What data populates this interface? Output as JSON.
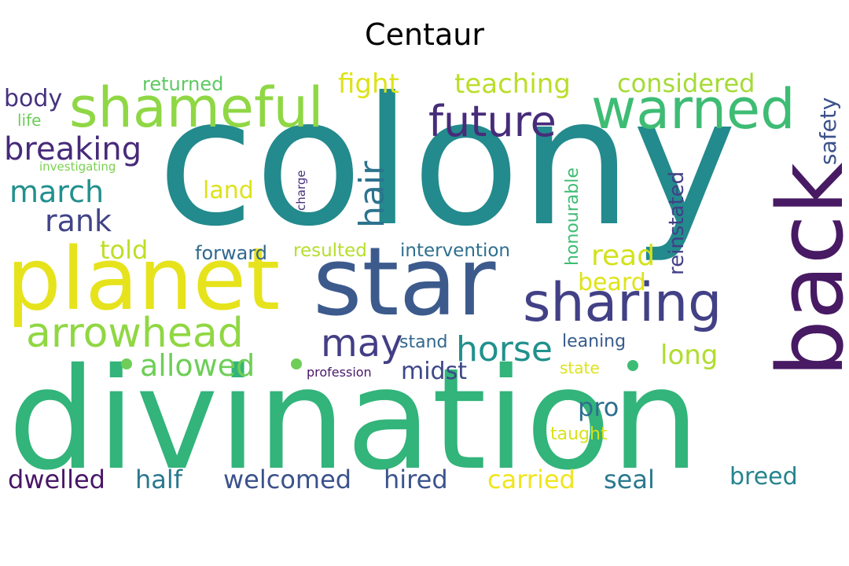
{
  "title": "Centaur",
  "words": [
    {
      "text": "colony",
      "color": "#238a8d"
    },
    {
      "text": "divination",
      "color": "#32b47a"
    },
    {
      "text": "star",
      "color": "#3c5a8c"
    },
    {
      "text": "planet",
      "color": "#e6e31c"
    },
    {
      "text": "back",
      "color": "#471a63"
    },
    {
      "text": "shameful",
      "color": "#8fd744"
    },
    {
      "text": "warned",
      "color": "#3ebc74"
    },
    {
      "text": "sharing",
      "color": "#424086"
    },
    {
      "text": "future",
      "color": "#472c7a"
    },
    {
      "text": "arrowhead",
      "color": "#90d743"
    },
    {
      "text": "breaking",
      "color": "#472a7a"
    },
    {
      "text": "hair",
      "color": "#2c738e"
    },
    {
      "text": "may",
      "color": "#433e85"
    },
    {
      "text": "horse",
      "color": "#21918c"
    },
    {
      "text": "allowed",
      "color": "#6ece58"
    },
    {
      "text": "march",
      "color": "#21908d"
    },
    {
      "text": "rank",
      "color": "#414487"
    },
    {
      "text": "fight",
      "color": "#dde318"
    },
    {
      "text": "teaching",
      "color": "#bade28"
    },
    {
      "text": "considered",
      "color": "#a5db36"
    },
    {
      "text": "read",
      "color": "#d2e21b"
    },
    {
      "text": "told",
      "color": "#bddf26"
    },
    {
      "text": "land",
      "color": "#dde318"
    },
    {
      "text": "body",
      "color": "#46327e"
    },
    {
      "text": "returned",
      "color": "#5ec962"
    },
    {
      "text": "life",
      "color": "#6ccd5a"
    },
    {
      "text": "investigating",
      "color": "#7ad151"
    },
    {
      "text": "safety",
      "color": "#3b528b"
    },
    {
      "text": "honourable",
      "color": "#3fbc73"
    },
    {
      "text": "reinstated",
      "color": "#424086"
    },
    {
      "text": "charge",
      "color": "#46307e"
    },
    {
      "text": "forward",
      "color": "#31688e"
    },
    {
      "text": "resulted",
      "color": "#b5de2b"
    },
    {
      "text": "intervention",
      "color": "#2e6f8e"
    },
    {
      "text": "beard",
      "color": "#dfe318"
    },
    {
      "text": "stand",
      "color": "#31688e"
    },
    {
      "text": "leaning",
      "color": "#375b8d"
    },
    {
      "text": "long",
      "color": "#b0dd2f"
    },
    {
      "text": "midst",
      "color": "#3f4788"
    },
    {
      "text": "state",
      "color": "#dde318"
    },
    {
      "text": "profession",
      "color": "#481769"
    },
    {
      "text": "pro",
      "color": "#2e6f8e"
    },
    {
      "text": "taught",
      "color": "#d8e219"
    },
    {
      "text": "dwelled",
      "color": "#481668"
    },
    {
      "text": "half",
      "color": "#2a788e"
    },
    {
      "text": "welcomed",
      "color": "#3b528b"
    },
    {
      "text": "hired",
      "color": "#3a548c"
    },
    {
      "text": "carried",
      "color": "#f1e51d"
    },
    {
      "text": "seal",
      "color": "#2a788e"
    },
    {
      "text": "breed",
      "color": "#25848e"
    }
  ]
}
